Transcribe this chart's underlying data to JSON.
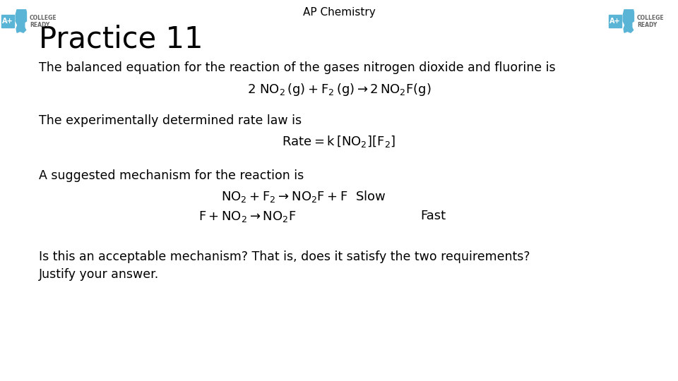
{
  "title": "AP Chemistry",
  "practice_title": "Practice 11",
  "bg_color": "#ffffff",
  "text_color": "#000000",
  "logo_color": "#5ab4d6",
  "logo_text_color": "#666666",
  "line1": "The balanced equation for the reaction of the gases nitrogen dioxide and fluorine is",
  "eq1": "$2\\ \\mathrm{NO_2\\,(g) + F_2\\,(g) \\rightarrow 2\\, NO_2F(g)}$",
  "line3": "The experimentally determined rate law is",
  "eq2": "$\\mathrm{Rate = k\\, [NO_2][F_2]}$",
  "line5": "A suggested mechanism for the reaction is",
  "eq3_math": "$\\mathrm{NO_2 + F_2 \\rightarrow NO_2F + F}$",
  "eq3_slow": "  Slow",
  "eq4_math": "$\\mathrm{F + NO_2 \\rightarrow NO_2F}$",
  "eq4_fast": "Fast",
  "question_line1": "Is this an acceptable mechanism? That is, does it satisfy the two requirements?",
  "question_line2": "Justify your answer."
}
